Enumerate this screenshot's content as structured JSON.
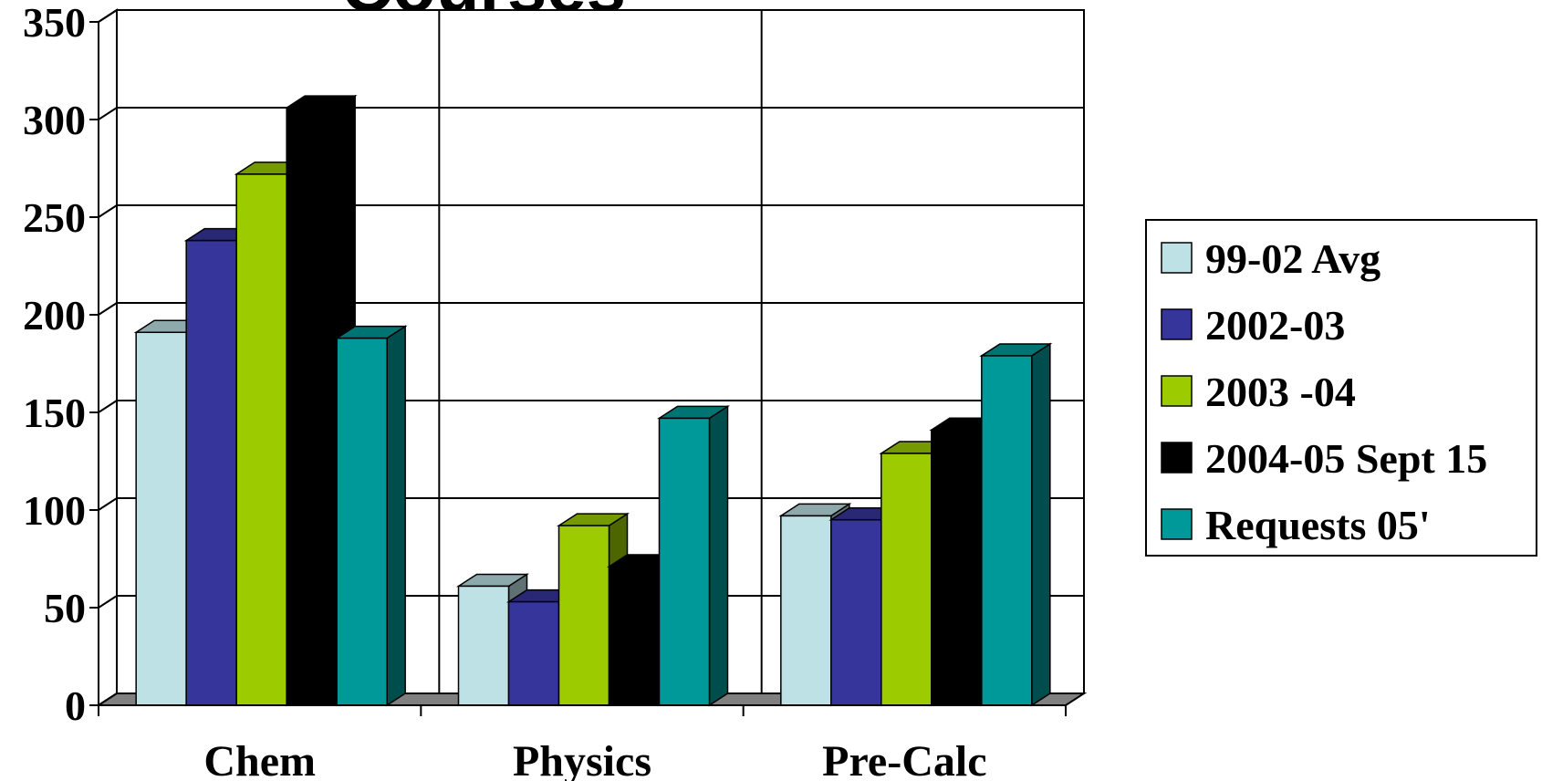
{
  "chart_data": {
    "type": "bar",
    "title": "Courses",
    "xlabel": "",
    "ylabel": "",
    "ylim": [
      0,
      350
    ],
    "yticks": [
      "0",
      "50",
      "100",
      "150",
      "200",
      "250",
      "300",
      "350"
    ],
    "grid": true,
    "legend_position": "right",
    "categories": [
      "Chem",
      "Physics",
      "Pre-Calc"
    ],
    "series": [
      {
        "name": "99-02 Avg",
        "color": "#bde1e4",
        "values": [
          191,
          61,
          97
        ]
      },
      {
        "name": "2002-03",
        "color": "#35359b",
        "values": [
          238,
          53,
          95
        ]
      },
      {
        "name": "2003 -04",
        "color": "#9ccc00",
        "values": [
          272,
          92,
          129
        ]
      },
      {
        "name": "2004-05 Sept 15",
        "color": "#000000",
        "values": [
          306,
          71,
          141
        ]
      },
      {
        "name": "Requests 05'",
        "color": "#009999",
        "values": [
          188,
          147,
          179
        ]
      }
    ]
  }
}
